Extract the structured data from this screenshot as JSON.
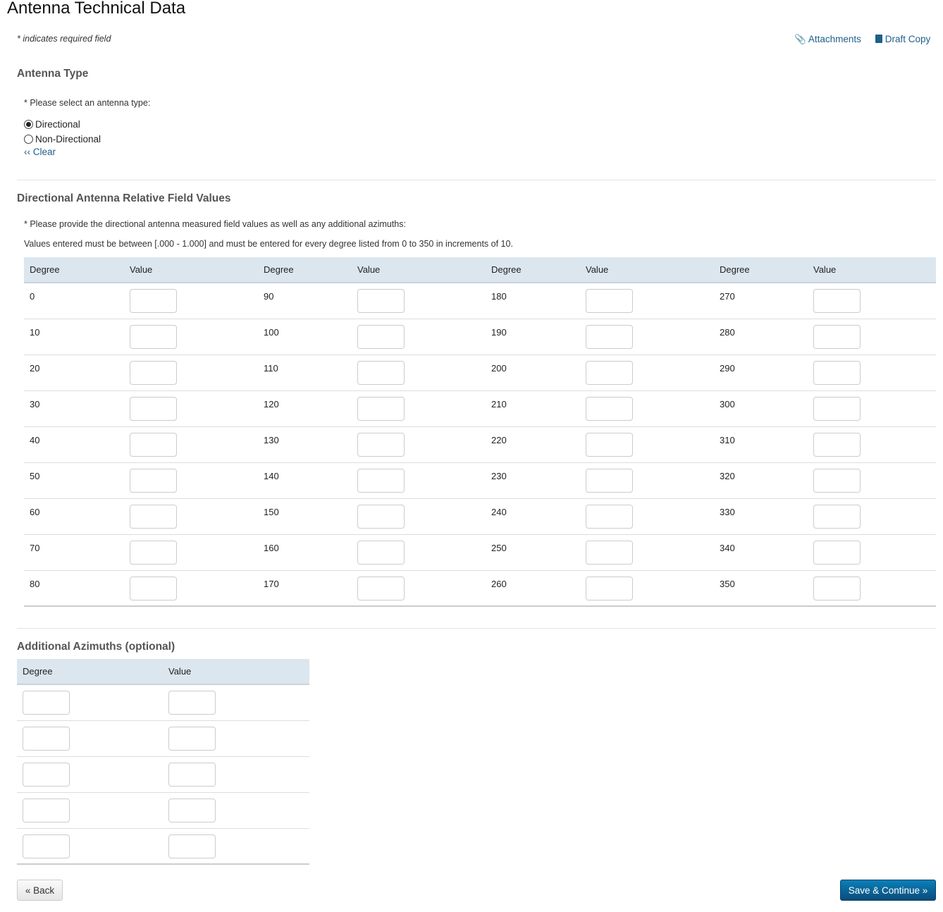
{
  "title": "Antenna Technical Data",
  "required_note": "* indicates required field",
  "links": {
    "attachments": "Attachments",
    "draft_copy": "Draft Copy"
  },
  "antenna_type": {
    "heading": "Antenna Type",
    "prompt": "* Please select an antenna type:",
    "options": [
      {
        "label": "Directional",
        "selected": true
      },
      {
        "label": "Non-Directional",
        "selected": false
      }
    ],
    "clear": "‹‹ Clear"
  },
  "directional": {
    "heading": "Directional Antenna Relative Field Values",
    "prompt": "* Please provide the directional antenna measured field values as well as any additional azimuths:",
    "note": "Values entered must be between [.000 - 1.000] and must be entered for every degree listed from 0 to 350 in increments of 10.",
    "columns": [
      "Degree",
      "Value",
      "Degree",
      "Value",
      "Degree",
      "Value",
      "Degree",
      "Value"
    ],
    "degrees": [
      [
        "0",
        "90",
        "180",
        "270"
      ],
      [
        "10",
        "100",
        "190",
        "280"
      ],
      [
        "20",
        "110",
        "200",
        "290"
      ],
      [
        "30",
        "120",
        "210",
        "300"
      ],
      [
        "40",
        "130",
        "220",
        "310"
      ],
      [
        "50",
        "140",
        "230",
        "320"
      ],
      [
        "60",
        "150",
        "240",
        "330"
      ],
      [
        "70",
        "160",
        "250",
        "340"
      ],
      [
        "80",
        "170",
        "260",
        "350"
      ]
    ]
  },
  "azimuths": {
    "heading": "Additional Azimuths (optional)",
    "columns": [
      "Degree",
      "Value"
    ],
    "row_count": 5
  },
  "buttons": {
    "back": "« Back",
    "save": "Save & Continue »"
  },
  "colors": {
    "link": "#1f5f8b",
    "primary": "#0b5f94",
    "table_header": "#dce6ef"
  }
}
